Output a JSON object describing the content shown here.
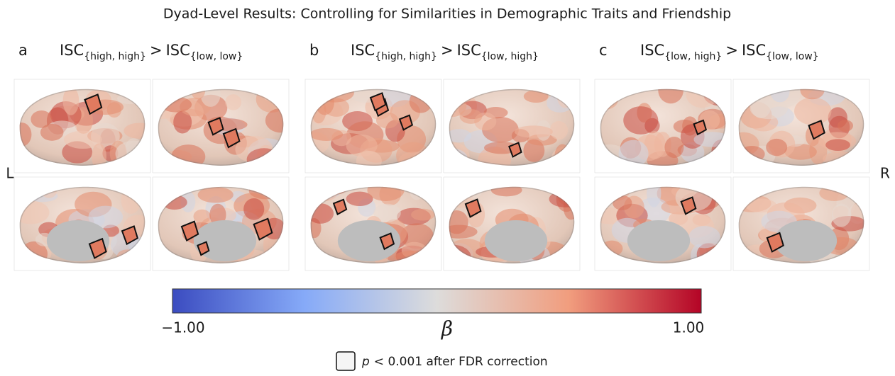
{
  "title": "Dyad-Level Results: Controlling for Similarities in Demographic Traits and Friendship",
  "panels": [
    {
      "label": "a",
      "left": {
        "base": "ISC",
        "sub": "{high, high}"
      },
      "operator": ">",
      "right": {
        "base": "ISC",
        "sub": "{low, low}"
      }
    },
    {
      "label": "b",
      "left": {
        "base": "ISC",
        "sub": "{high, high}"
      },
      "operator": ">",
      "right": {
        "base": "ISC",
        "sub": "{low, high}"
      }
    },
    {
      "label": "c",
      "left": {
        "base": "ISC",
        "sub": "{low, high}"
      },
      "operator": ">",
      "right": {
        "base": "ISC",
        "sub": "{low, low}"
      }
    }
  ],
  "hemisphere_labels": {
    "left": "L",
    "right": "R"
  },
  "colorbar": {
    "min_label": "−1.00",
    "max_label": "1.00",
    "symbol": "β"
  },
  "legend": {
    "p": "p",
    "text": "< 0.001 after FDR correction"
  }
}
